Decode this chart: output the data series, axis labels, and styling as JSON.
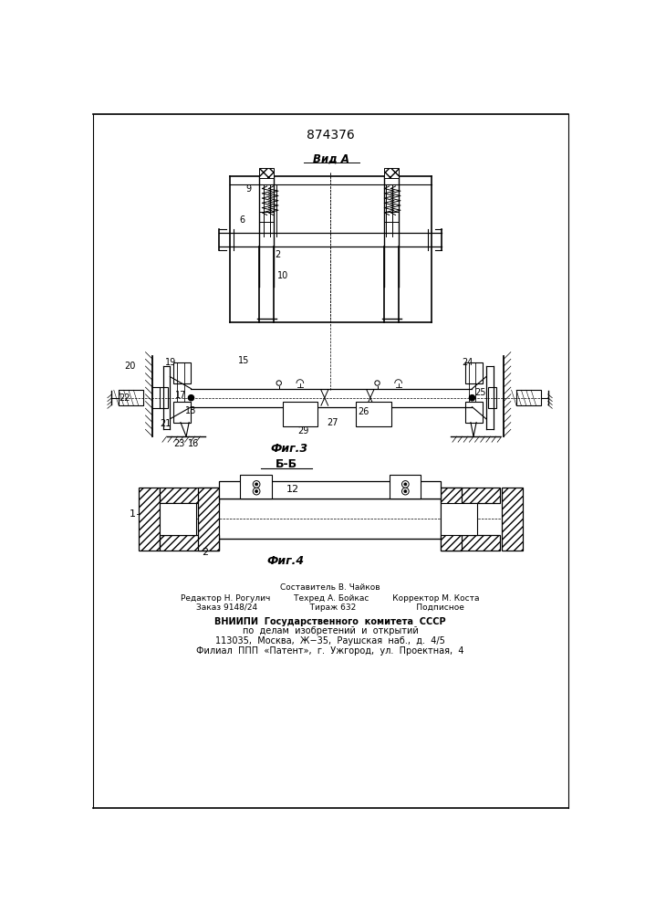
{
  "patent_number": "874376",
  "view_a_label": "Вид А",
  "fig3_label": "Фиг.3",
  "fig4_label": "Фиг.4",
  "section_label": "Б-Б",
  "bg_color": "#ffffff",
  "line_color": "#000000"
}
